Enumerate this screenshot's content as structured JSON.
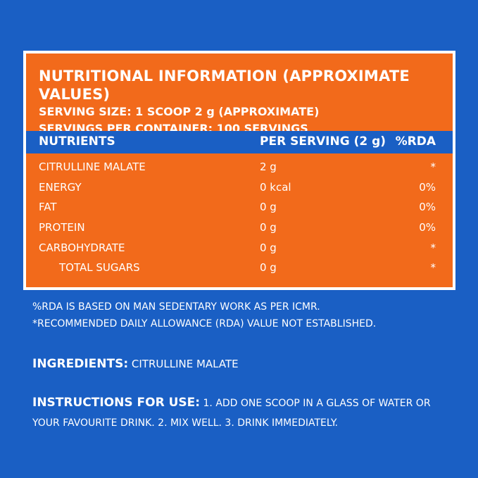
{
  "panel": {
    "title": "NUTRITIONAL INFORMATION (APPROXIMATE VALUES)",
    "serving_size": "SERVING SIZE: 1 SCOOP 2 g (APPROXIMATE)",
    "servings_per_container": "SERVINGS PER CONTAINER: 100 SERVINGS"
  },
  "table": {
    "headers": {
      "nutrients": "NUTRIENTS",
      "per_serving": "PER SERVING (2 g)",
      "rda": "%RDA"
    },
    "rows": [
      {
        "name": "CITRULLINE MALATE",
        "amount": "2 g",
        "rda": "*"
      },
      {
        "name": "ENERGY",
        "amount": "0 kcal",
        "rda": "0%"
      },
      {
        "name": "FAT",
        "amount": "0 g",
        "rda": "0%"
      },
      {
        "name": "PROTEIN",
        "amount": "0 g",
        "rda": "0%"
      },
      {
        "name": "CARBOHYDRATE",
        "amount": "0 g",
        "rda": "*"
      },
      {
        "name": "TOTAL SUGARS",
        "amount": "0 g",
        "rda": "*"
      }
    ]
  },
  "notes": {
    "line1": "%RDA IS BASED ON MAN SEDENTARY WORK AS PER ICMR.",
    "line2": "*RECOMMENDED DAILY ALLOWANCE (RDA) VALUE NOT ESTABLISHED."
  },
  "ingredients": {
    "label": "INGREDIENTS:",
    "text": "CITRULLINE MALATE"
  },
  "instructions": {
    "label": "INSTRUCTIONS FOR USE:",
    "text": "1.  ADD ONE SCOOP IN A GLASS OF WATER OR YOUR FAVOURITE DRINK. 2.  MIX WELL. 3.  DRINK IMMEDIATELY."
  },
  "colors": {
    "background": "#1a5fc4",
    "panel": "#f26a1b",
    "text": "#ffffff"
  }
}
